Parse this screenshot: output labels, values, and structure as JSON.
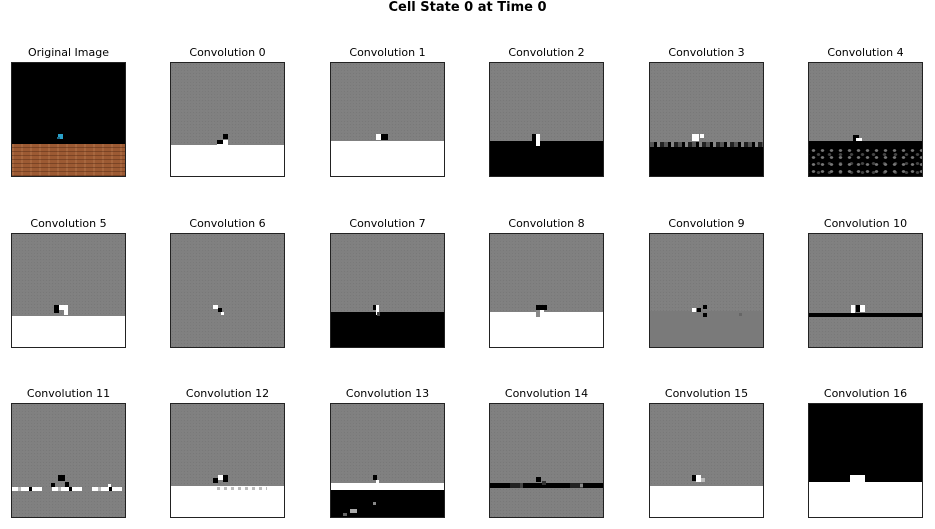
{
  "figure": {
    "title": "Cell State 0 at Time 0"
  },
  "panels": [
    {
      "label": "Original Image"
    },
    {
      "label": "Convolution 0"
    },
    {
      "label": "Convolution 1"
    },
    {
      "label": "Convolution 2"
    },
    {
      "label": "Convolution 3"
    },
    {
      "label": "Convolution 4"
    },
    {
      "label": "Convolution 5"
    },
    {
      "label": "Convolution 6"
    },
    {
      "label": "Convolution 7"
    },
    {
      "label": "Convolution 8"
    },
    {
      "label": "Convolution 9"
    },
    {
      "label": "Convolution 10"
    },
    {
      "label": "Convolution 11"
    },
    {
      "label": "Convolution 12"
    },
    {
      "label": "Convolution 13"
    },
    {
      "label": "Convolution 14"
    },
    {
      "label": "Convolution 15"
    },
    {
      "label": "Convolution 16"
    }
  ]
}
